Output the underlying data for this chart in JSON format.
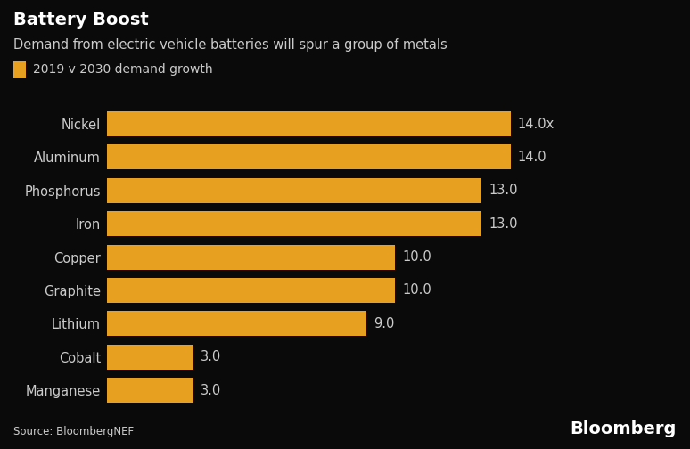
{
  "title": "Battery Boost",
  "subtitle": "Demand from electric vehicle batteries will spur a group of metals",
  "legend_label": "2019 v 2030 demand growth",
  "categories": [
    "Manganese",
    "Cobalt",
    "Lithium",
    "Graphite",
    "Copper",
    "Iron",
    "Phosphorus",
    "Aluminum",
    "Nickel"
  ],
  "values": [
    3.0,
    3.0,
    9.0,
    10.0,
    10.0,
    13.0,
    13.0,
    14.0,
    14.0
  ],
  "labels": [
    "3.0",
    "3.0",
    "9.0",
    "10.0",
    "10.0",
    "13.0",
    "13.0",
    "14.0",
    "14.0x"
  ],
  "bar_color": "#E8A020",
  "background_color": "#0a0a0a",
  "text_color": "#CCCCCC",
  "title_color": "#FFFFFF",
  "source_text": "Source: BloombergNEF",
  "bloomberg_text": "Bloomberg",
  "xlim": [
    0,
    17.0
  ],
  "bar_height": 0.75,
  "legend_color": "#E8A020",
  "label_fontsize": 10.5,
  "category_fontsize": 10.5,
  "title_fontsize": 14,
  "subtitle_fontsize": 10.5,
  "source_fontsize": 8.5,
  "bloomberg_fontsize": 14
}
